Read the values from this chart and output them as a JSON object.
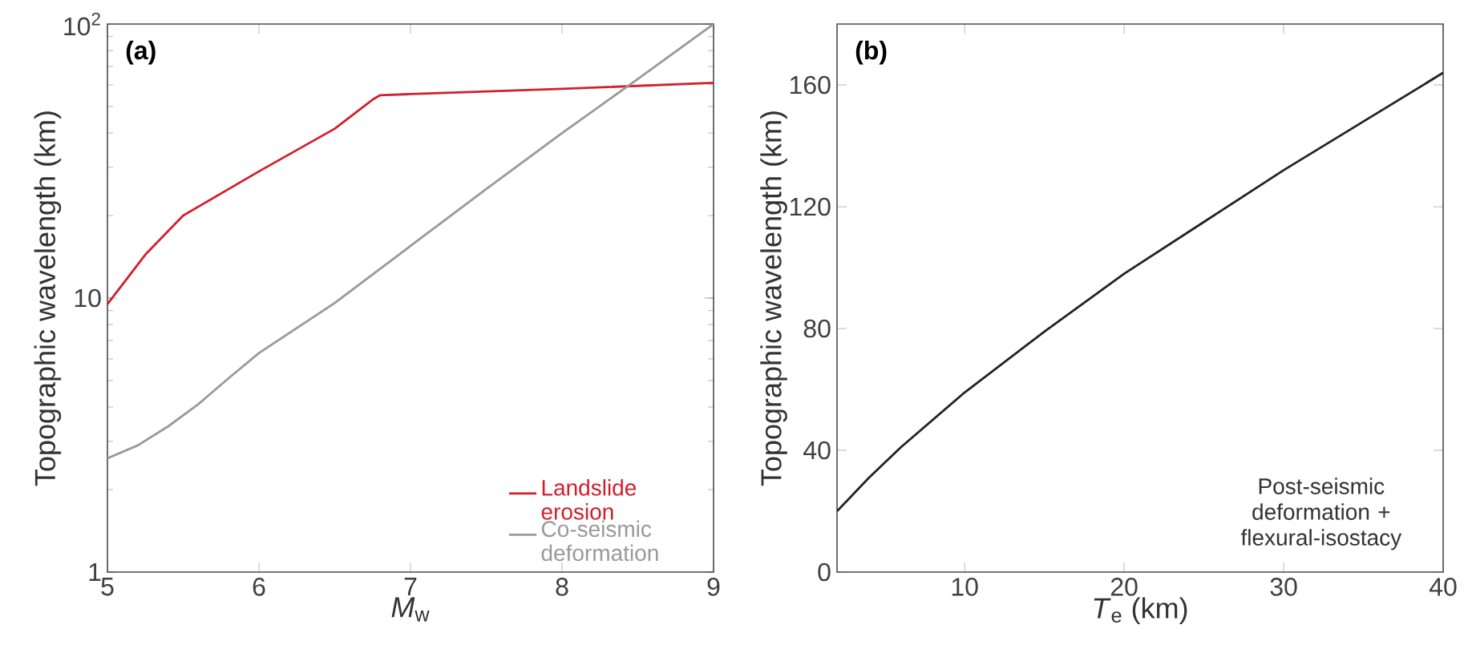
{
  "chart_data": [
    {
      "type": "line",
      "title": "(a)",
      "xlabel": "*M*$_{w}$",
      "ylabel": "Topographic wavelength (km)",
      "log": "y",
      "xlim": [
        5,
        9
      ],
      "ylim": [
        1,
        100
      ],
      "xticks": [
        5,
        6,
        7,
        8,
        9
      ],
      "yticks": [
        1,
        10,
        {
          "value": 100,
          "label": "10$^{2}$"
        }
      ],
      "legend": "bottom right",
      "series": [
        {
          "name": "Landslide erosion",
          "color": "#d0202e",
          "x": [
            5,
            5.25,
            5.5,
            6,
            6.5,
            6.75,
            6.8,
            7,
            8,
            9
          ],
          "values": [
            9.5,
            14.4,
            20,
            29,
            41.5,
            53,
            55,
            55.5,
            58,
            61
          ]
        },
        {
          "name": "Co-seismic deformation",
          "color": "#999999",
          "x": [
            5,
            5.2,
            5.4,
            5.6,
            5.8,
            6,
            6.5,
            7,
            7.5,
            8,
            8.5,
            9
          ],
          "values": [
            2.6,
            2.9,
            3.4,
            4.1,
            5.1,
            6.3,
            9.6,
            15.5,
            25,
            40,
            63,
            100
          ]
        }
      ]
    },
    {
      "type": "line",
      "title": "(b)",
      "xlabel": "*T*$_{e}$ (km)",
      "ylabel": "Topographic wavelength (km)",
      "xlim": [
        2,
        40
      ],
      "ylim": [
        0,
        180
      ],
      "xticks": [
        10,
        20,
        30,
        40
      ],
      "yticks": [
        0,
        40,
        80,
        120,
        160
      ],
      "annotations": [
        "Post-seismic deformation + flexural-isostacy"
      ],
      "series": [
        {
          "color": "#222222",
          "x": [
            2,
            4,
            6,
            10,
            15,
            20,
            25,
            30,
            35,
            40
          ],
          "values": [
            20,
            31,
            41,
            59,
            79,
            98,
            115,
            132,
            148,
            164
          ]
        }
      ]
    }
  ]
}
